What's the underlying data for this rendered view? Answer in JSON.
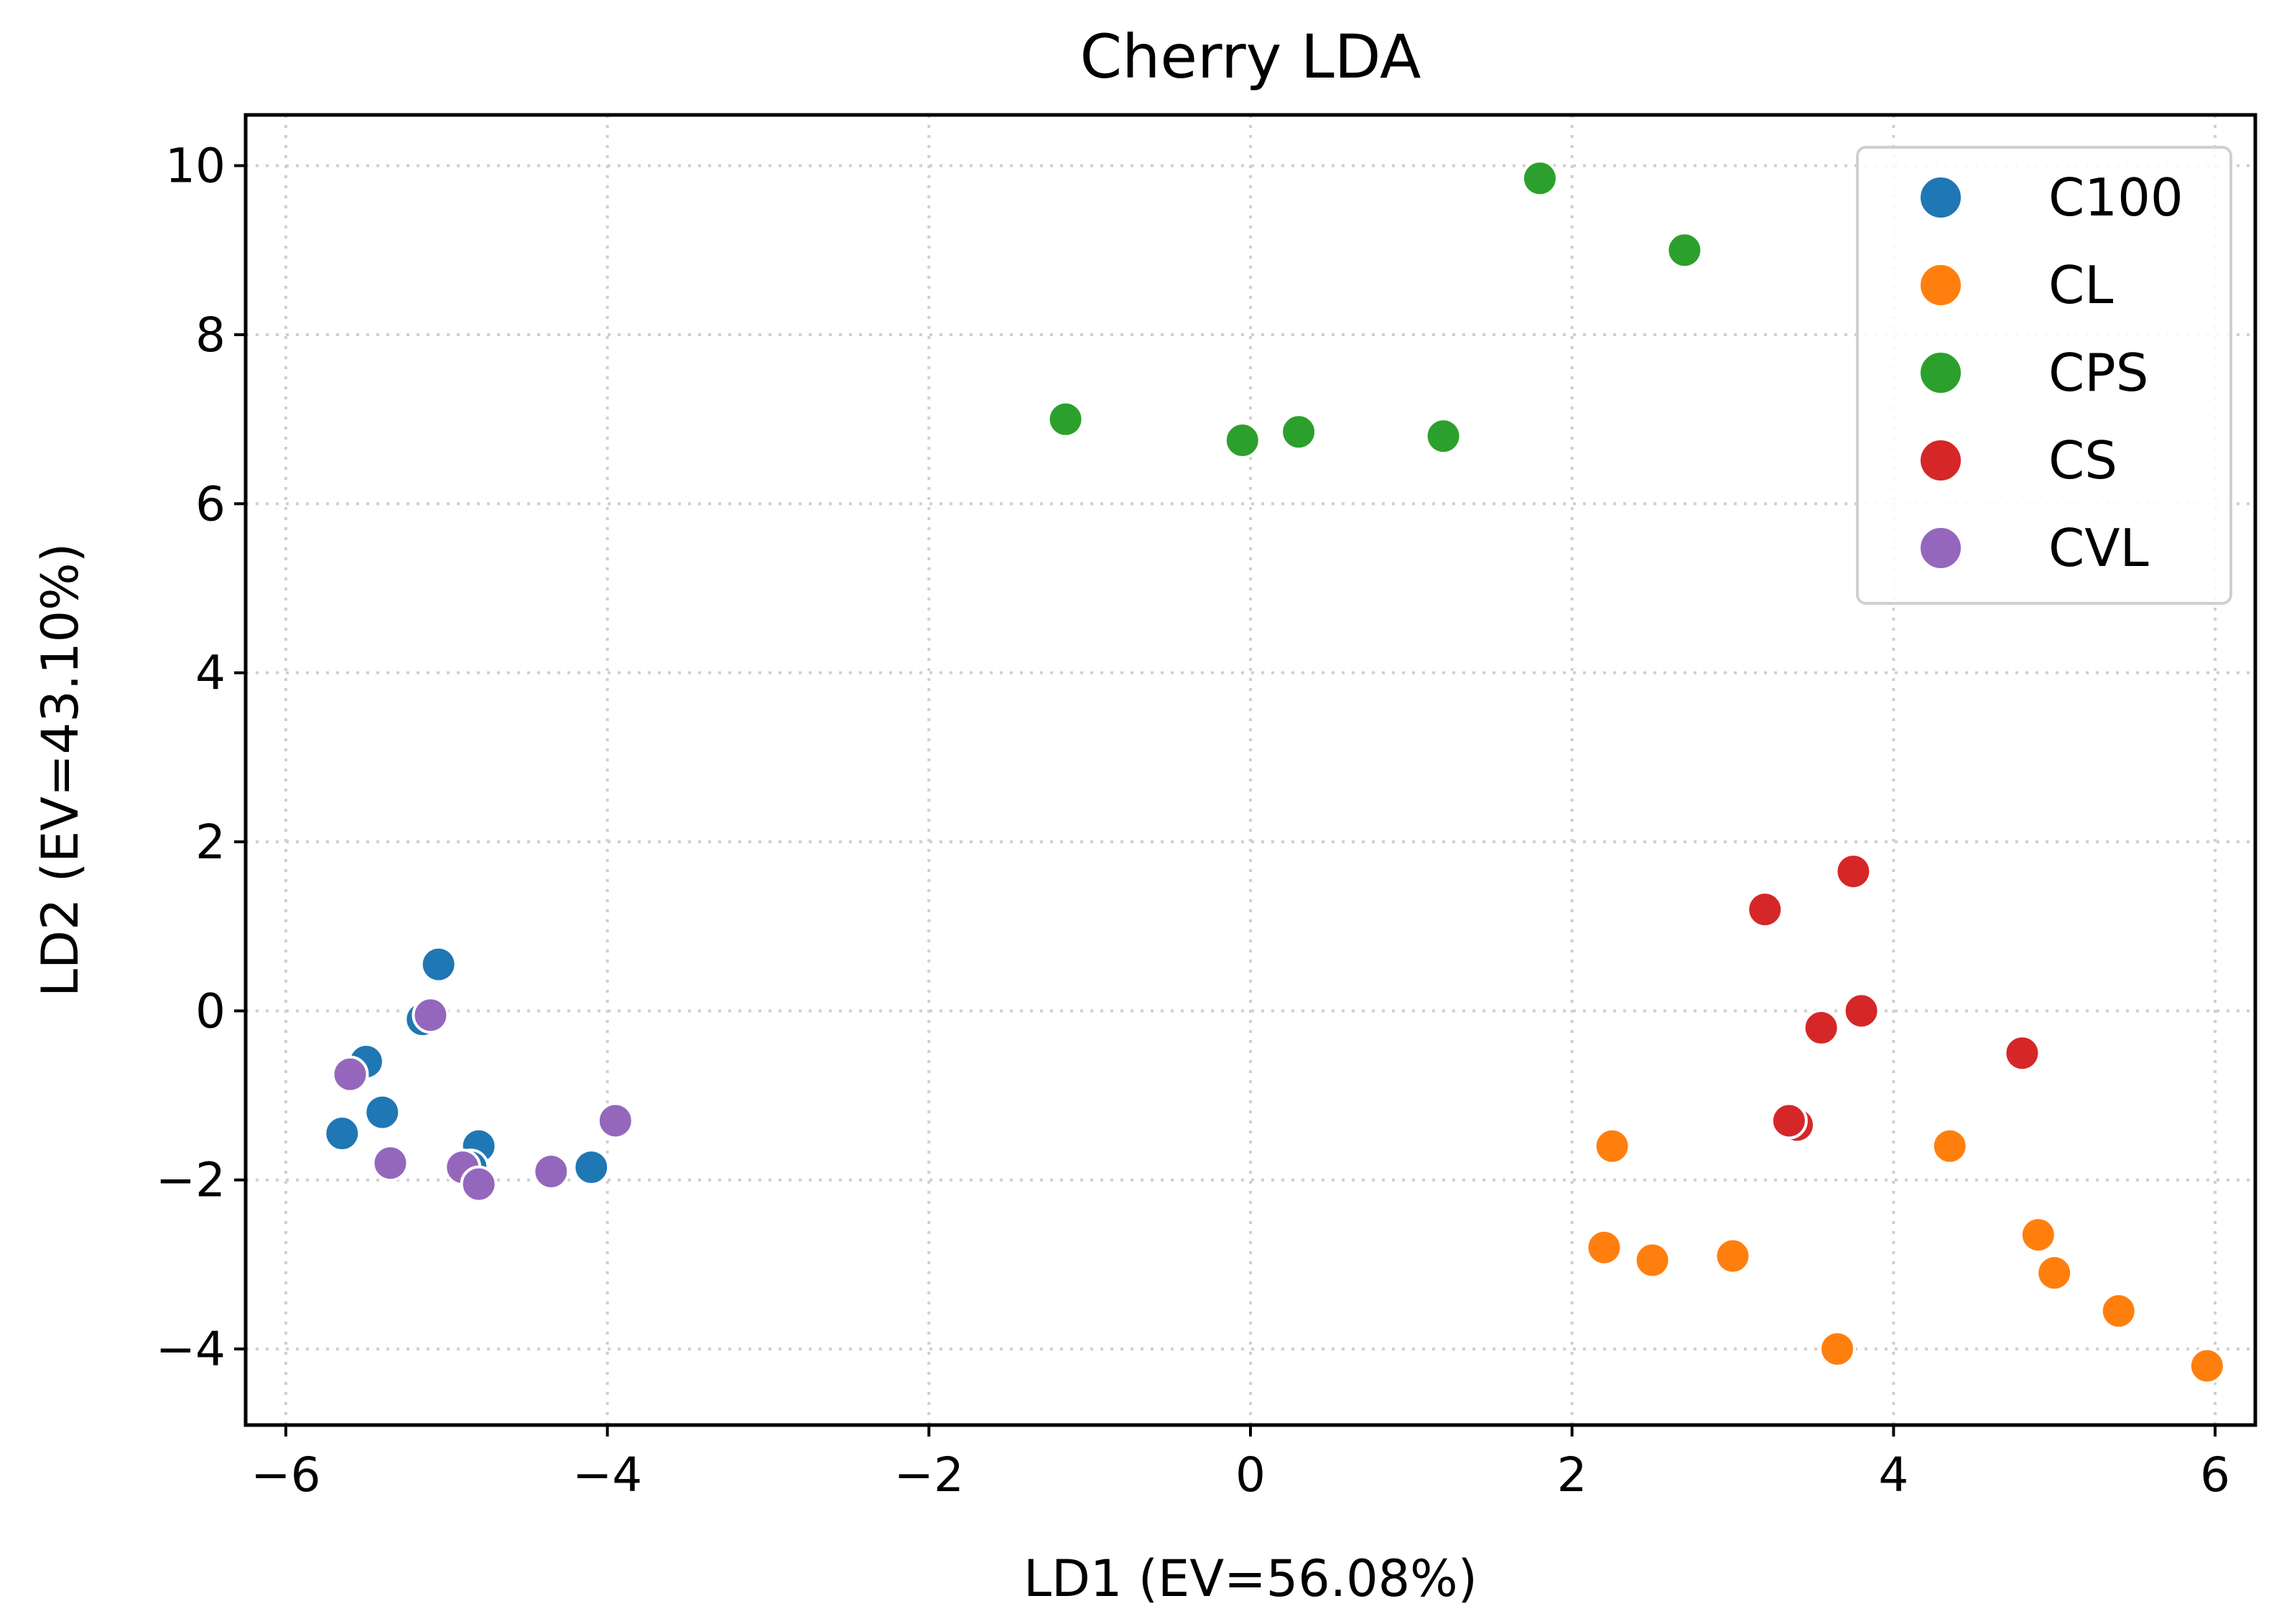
{
  "chart_data": {
    "type": "scatter",
    "title": "Cherry LDA",
    "xlabel": "LD1 (EV=56.08%)",
    "ylabel": "LD2 (EV=43.10%)",
    "xlim": [
      -6.25,
      6.25
    ],
    "ylim": [
      -4.9,
      10.6
    ],
    "xticks": [
      -6,
      -4,
      -2,
      0,
      2,
      4,
      6
    ],
    "xtick_labels": [
      "−6",
      "−4",
      "−2",
      "0",
      "2",
      "4",
      "6"
    ],
    "yticks": [
      -4,
      -2,
      0,
      2,
      4,
      6,
      8,
      10
    ],
    "ytick_labels": [
      "−4",
      "−2",
      "0",
      "2",
      "4",
      "6",
      "8",
      "10"
    ],
    "grid": true,
    "legend_position": "top-right",
    "series": [
      {
        "name": "C100",
        "color": "#1f77b4",
        "points": [
          [
            -5.05,
            0.55
          ],
          [
            -5.15,
            -0.1
          ],
          [
            -5.5,
            -0.6
          ],
          [
            -5.4,
            -1.2
          ],
          [
            -5.65,
            -1.45
          ],
          [
            -4.8,
            -1.6
          ],
          [
            -4.85,
            -1.85
          ],
          [
            -4.1,
            -1.85
          ]
        ]
      },
      {
        "name": "CL",
        "color": "#ff7f0e",
        "points": [
          [
            2.25,
            -1.6
          ],
          [
            2.2,
            -2.8
          ],
          [
            2.5,
            -2.95
          ],
          [
            3.0,
            -2.9
          ],
          [
            3.65,
            -4.0
          ],
          [
            4.35,
            -1.6
          ],
          [
            4.9,
            -2.65
          ],
          [
            5.0,
            -3.1
          ],
          [
            5.4,
            -3.55
          ],
          [
            5.95,
            -4.2
          ]
        ]
      },
      {
        "name": "CPS",
        "color": "#2ca02c",
        "points": [
          [
            1.8,
            9.85
          ],
          [
            2.7,
            9.0
          ],
          [
            -1.15,
            7.0
          ],
          [
            -0.05,
            6.75
          ],
          [
            0.3,
            6.85
          ],
          [
            1.2,
            6.8
          ]
        ]
      },
      {
        "name": "CS",
        "color": "#d62728",
        "points": [
          [
            3.75,
            1.65
          ],
          [
            3.2,
            1.2
          ],
          [
            3.8,
            0.0
          ],
          [
            3.55,
            -0.2
          ],
          [
            4.8,
            -0.5
          ],
          [
            3.4,
            -1.35
          ],
          [
            3.35,
            -1.3
          ]
        ]
      },
      {
        "name": "CVL",
        "color": "#9467bd",
        "points": [
          [
            -5.1,
            -0.05
          ],
          [
            -5.6,
            -0.75
          ],
          [
            -5.35,
            -1.8
          ],
          [
            -4.9,
            -1.85
          ],
          [
            -4.8,
            -2.05
          ],
          [
            -4.35,
            -1.9
          ],
          [
            -3.95,
            -1.3
          ]
        ]
      }
    ]
  }
}
